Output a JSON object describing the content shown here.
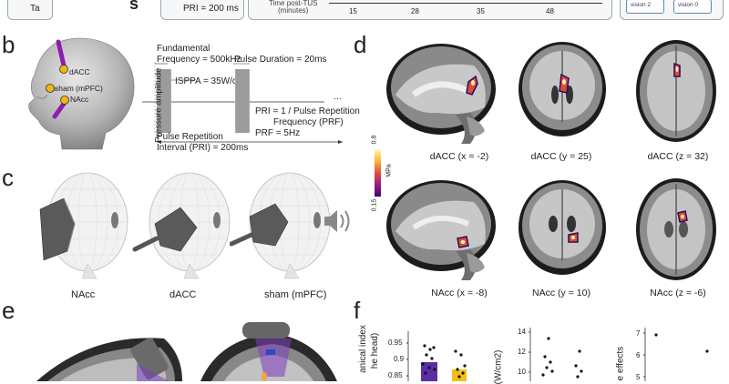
{
  "top_strip": {
    "left_label": "Ta",
    "panel_letter": "s",
    "pri_label": "PRI = 200 ms",
    "time_label_line1": "Time post-TUS",
    "time_label_line2": "(minutes)",
    "ticks": [
      "15",
      "28",
      "35",
      "48"
    ],
    "vision_labels": [
      "vision 2",
      "vision 0"
    ]
  },
  "panel_b": {
    "letter": "b",
    "head_labels": [
      "dACC",
      "sham (mPFC)",
      "NAcc"
    ],
    "fundamental_line1": "Fundamental",
    "fundamental_line2": "Frequency = 500kHz",
    "pulse_duration": "Pulse Duration = 20ms",
    "isppa": "ISPPA = 35W/cm²",
    "y_axis": "Pressure amplitude",
    "ellipsis": "...",
    "pri_def_line1": "PRI = 1 / Pulse Repetition",
    "pri_def_line2": "Frequency (PRF)",
    "prf": "PRF = 5Hz",
    "pulse_rep_line1": "Pulse Repetition",
    "pulse_rep_line2": "Interval (PRI) = 200ms"
  },
  "panel_c": {
    "letter": "c",
    "labels": [
      "NAcc",
      "dACC",
      "sham (mPFC)"
    ]
  },
  "panel_d": {
    "letter": "d",
    "colorbar_max": "0.8",
    "colorbar_min": "0.15",
    "colorbar_unit": "MPa",
    "top_labels": [
      "dACC (x = -2)",
      "dACC (y = 25)",
      "dACC (z = 32)"
    ],
    "bottom_labels": [
      "NAcc (x = -8)",
      "NAcc (y = 10)",
      "NAcc (z = -6)"
    ]
  },
  "panel_e": {
    "letter": "e"
  },
  "panel_f": {
    "letter": "f",
    "plot1_ylabel_line1": "anical index",
    "plot1_ylabel_line2": "he head)",
    "plot1_ticks": [
      "0.95",
      "0.9",
      "0.85"
    ],
    "plot2_ylabel": "(W/cm2)",
    "plot2_ticks": [
      "14",
      "12",
      "10"
    ],
    "plot3_ylabel": "e effects",
    "plot3_ticks": [
      "7",
      "6",
      "5"
    ]
  }
}
